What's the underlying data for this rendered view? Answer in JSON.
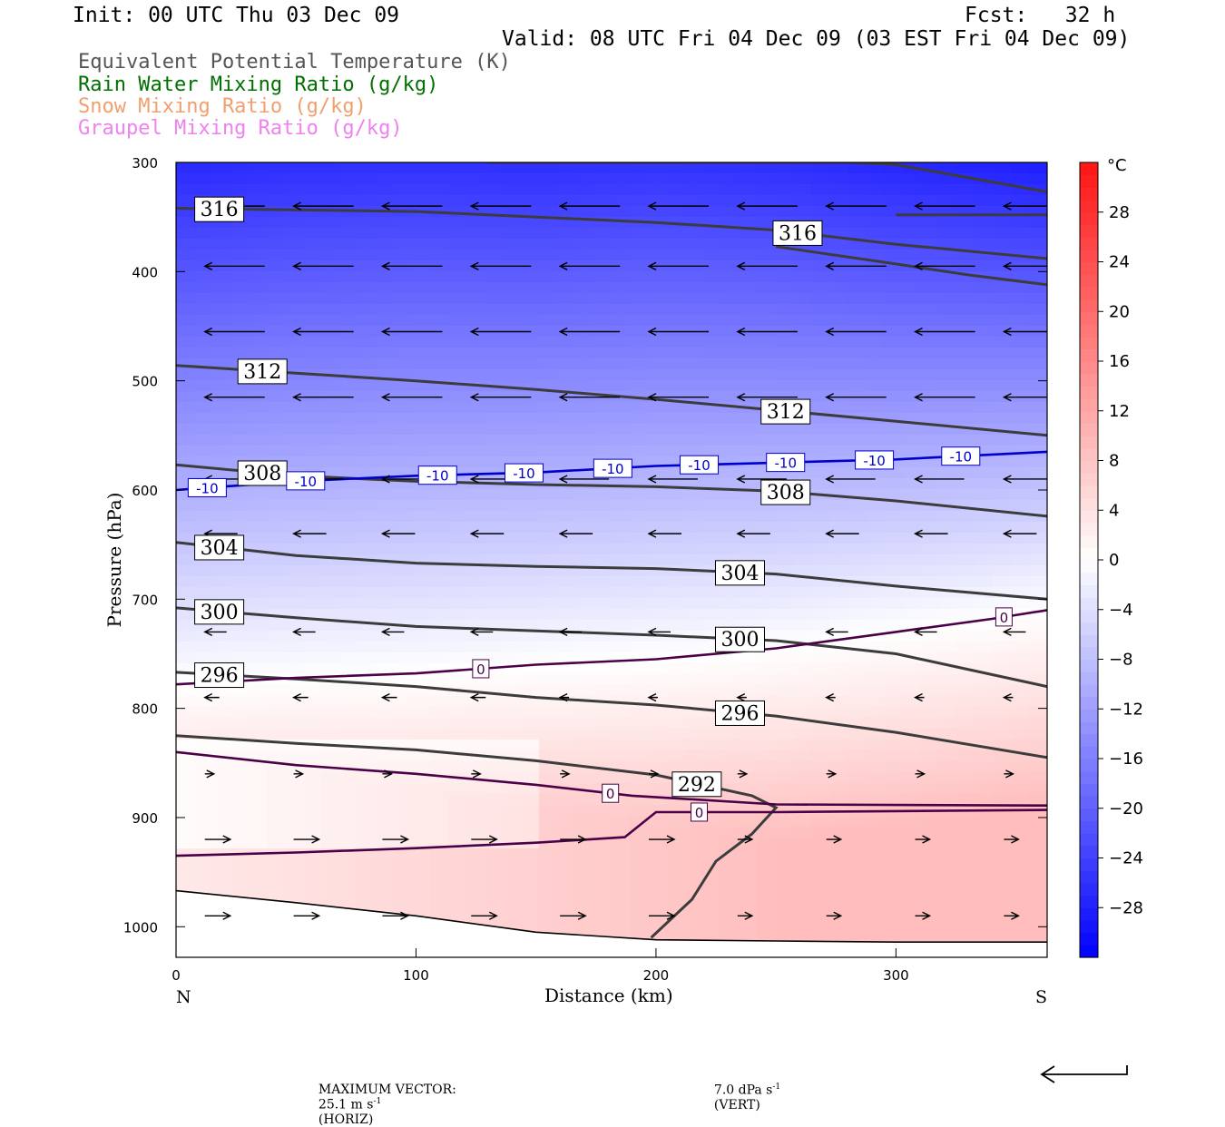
{
  "header": {
    "init": "Init: 00 UTC Thu 03 Dec 09",
    "fcst": "Fcst:   32 h",
    "valid": "Valid: 08 UTC Fri 04 Dec 09 (03 EST Fri 04 Dec 09)"
  },
  "legend": [
    {
      "label": "Equivalent Potential Temperature (K)",
      "color": "#555555"
    },
    {
      "label": "Rain Water Mixing Ratio (g/kg)",
      "color": "#007000"
    },
    {
      "label": "Snow Mixing Ratio (g/kg)",
      "color": "#f0a070"
    },
    {
      "label": "Graupel Mixing Ratio (g/kg)",
      "color": "#ee82ee"
    }
  ],
  "chart_data": {
    "type": "cross-section",
    "xlabel": "Distance (km)",
    "ylabel": "Pressure (hPa)",
    "xlim": [
      0,
      363
    ],
    "ylim": [
      1028,
      300
    ],
    "x_ticks": [
      0,
      100,
      200,
      300
    ],
    "y_ticks": [
      300,
      400,
      500,
      600,
      700,
      800,
      900,
      1000
    ],
    "left_end_label": "N",
    "right_end_label": "S",
    "colorbar": {
      "unit": "°C",
      "levels": [
        28,
        24,
        20,
        16,
        12,
        8,
        4,
        0,
        -4,
        -8,
        -12,
        -16,
        -20,
        -24,
        -28
      ],
      "range": [
        -32,
        32
      ]
    },
    "temperature_isotherms": [
      {
        "label": "-10",
        "color": "#0000cc",
        "points": [
          [
            0,
            600
          ],
          [
            50,
            592
          ],
          [
            100,
            587
          ],
          [
            150,
            584
          ],
          [
            200,
            578
          ],
          [
            250,
            575
          ],
          [
            300,
            572
          ],
          [
            363,
            565
          ]
        ],
        "label_x": [
          13,
          54,
          109,
          145,
          182,
          218,
          254,
          291,
          327
        ]
      },
      {
        "label": "0",
        "color": "#4b0048",
        "points": [
          [
            0,
            778
          ],
          [
            50,
            772
          ],
          [
            100,
            768
          ],
          [
            150,
            760
          ],
          [
            200,
            755
          ],
          [
            250,
            745
          ],
          [
            300,
            730
          ],
          [
            340,
            718
          ],
          [
            363,
            710
          ]
        ],
        "label_x": [
          127,
          345
        ]
      },
      {
        "label": "0",
        "color": "#4b0048",
        "points": [
          [
            0,
            840
          ],
          [
            50,
            852
          ],
          [
            100,
            860
          ],
          [
            150,
            870
          ],
          [
            190,
            880
          ],
          [
            250,
            888
          ],
          [
            363,
            889
          ]
        ],
        "label_x": [
          181
        ]
      },
      {
        "label": "0",
        "color": "#4b0048",
        "points": [
          [
            0,
            935
          ],
          [
            50,
            932
          ],
          [
            100,
            928
          ],
          [
            150,
            923
          ],
          [
            187,
            918
          ],
          [
            200,
            895
          ],
          [
            250,
            895
          ],
          [
            363,
            893
          ]
        ],
        "label_x": [
          218
        ]
      }
    ],
    "theta_e_contours": [
      {
        "label": "316",
        "points": [
          [
            0,
            342
          ],
          [
            100,
            345
          ],
          [
            200,
            355
          ],
          [
            250,
            362
          ],
          [
            300,
            375
          ],
          [
            363,
            388
          ]
        ],
        "label_x": [
          18,
          259
        ]
      },
      {
        "label": "312",
        "points": [
          [
            0,
            486
          ],
          [
            50,
            493
          ],
          [
            100,
            500
          ],
          [
            150,
            508
          ],
          [
            200,
            517
          ],
          [
            250,
            527
          ],
          [
            300,
            537
          ],
          [
            363,
            550
          ]
        ],
        "label_x": [
          36,
          254
        ]
      },
      {
        "label": "308",
        "points": [
          [
            0,
            577
          ],
          [
            50,
            587
          ],
          [
            100,
            592
          ],
          [
            150,
            595
          ],
          [
            200,
            597
          ],
          [
            250,
            601
          ],
          [
            300,
            610
          ],
          [
            363,
            624
          ]
        ],
        "label_x": [
          36,
          254
        ]
      },
      {
        "label": "304",
        "points": [
          [
            0,
            648
          ],
          [
            50,
            660
          ],
          [
            100,
            667
          ],
          [
            150,
            670
          ],
          [
            200,
            672
          ],
          [
            250,
            677
          ],
          [
            300,
            688
          ],
          [
            363,
            700
          ]
        ],
        "label_x": [
          18,
          235
        ]
      },
      {
        "label": "300",
        "points": [
          [
            0,
            708
          ],
          [
            50,
            717
          ],
          [
            100,
            725
          ],
          [
            150,
            729
          ],
          [
            200,
            733
          ],
          [
            250,
            738
          ],
          [
            300,
            750
          ],
          [
            363,
            780
          ]
        ],
        "label_x": [
          18,
          235
        ]
      },
      {
        "label": "296",
        "points": [
          [
            0,
            767
          ],
          [
            50,
            773
          ],
          [
            100,
            780
          ],
          [
            150,
            790
          ],
          [
            200,
            797
          ],
          [
            250,
            807
          ],
          [
            300,
            822
          ],
          [
            363,
            845
          ]
        ],
        "label_x": [
          18,
          235
        ]
      },
      {
        "label": "292",
        "points": [
          [
            0,
            825
          ],
          [
            50,
            832
          ],
          [
            100,
            838
          ],
          [
            150,
            848
          ],
          [
            200,
            861
          ],
          [
            240,
            880
          ],
          [
            250,
            891
          ],
          [
            240,
            915
          ],
          [
            225,
            940
          ],
          [
            215,
            975
          ],
          [
            198,
            1010
          ]
        ],
        "label_x": [
          217
        ]
      },
      {
        "label": "",
        "points": [
          [
            130,
            300
          ],
          [
            200,
            300
          ],
          [
            280,
            300
          ],
          [
            300,
            302
          ],
          [
            363,
            327
          ]
        ],
        "label_x": []
      },
      {
        "label": "",
        "points": [
          [
            300,
            348
          ],
          [
            363,
            348
          ]
        ],
        "label_x": []
      },
      {
        "label": "",
        "points": [
          [
            250,
            377
          ],
          [
            300,
            393
          ],
          [
            330,
            403
          ],
          [
            363,
            412
          ]
        ],
        "label_x": []
      }
    ],
    "terrain": [
      [
        0,
        967
      ],
      [
        50,
        978
      ],
      [
        100,
        990
      ],
      [
        150,
        1005
      ],
      [
        200,
        1012
      ],
      [
        250,
        1013
      ],
      [
        300,
        1014
      ],
      [
        363,
        1014
      ]
    ],
    "max_vector": {
      "text": "MAXIMUM VECTOR:",
      "horiz_value": "25.1 m s",
      "horiz_exp": "-1",
      "horiz_tag": "(HORIZ)",
      "vert_value": "7.0 dPa s",
      "vert_exp": "-1",
      "vert_tag": "(VERT)"
    }
  }
}
